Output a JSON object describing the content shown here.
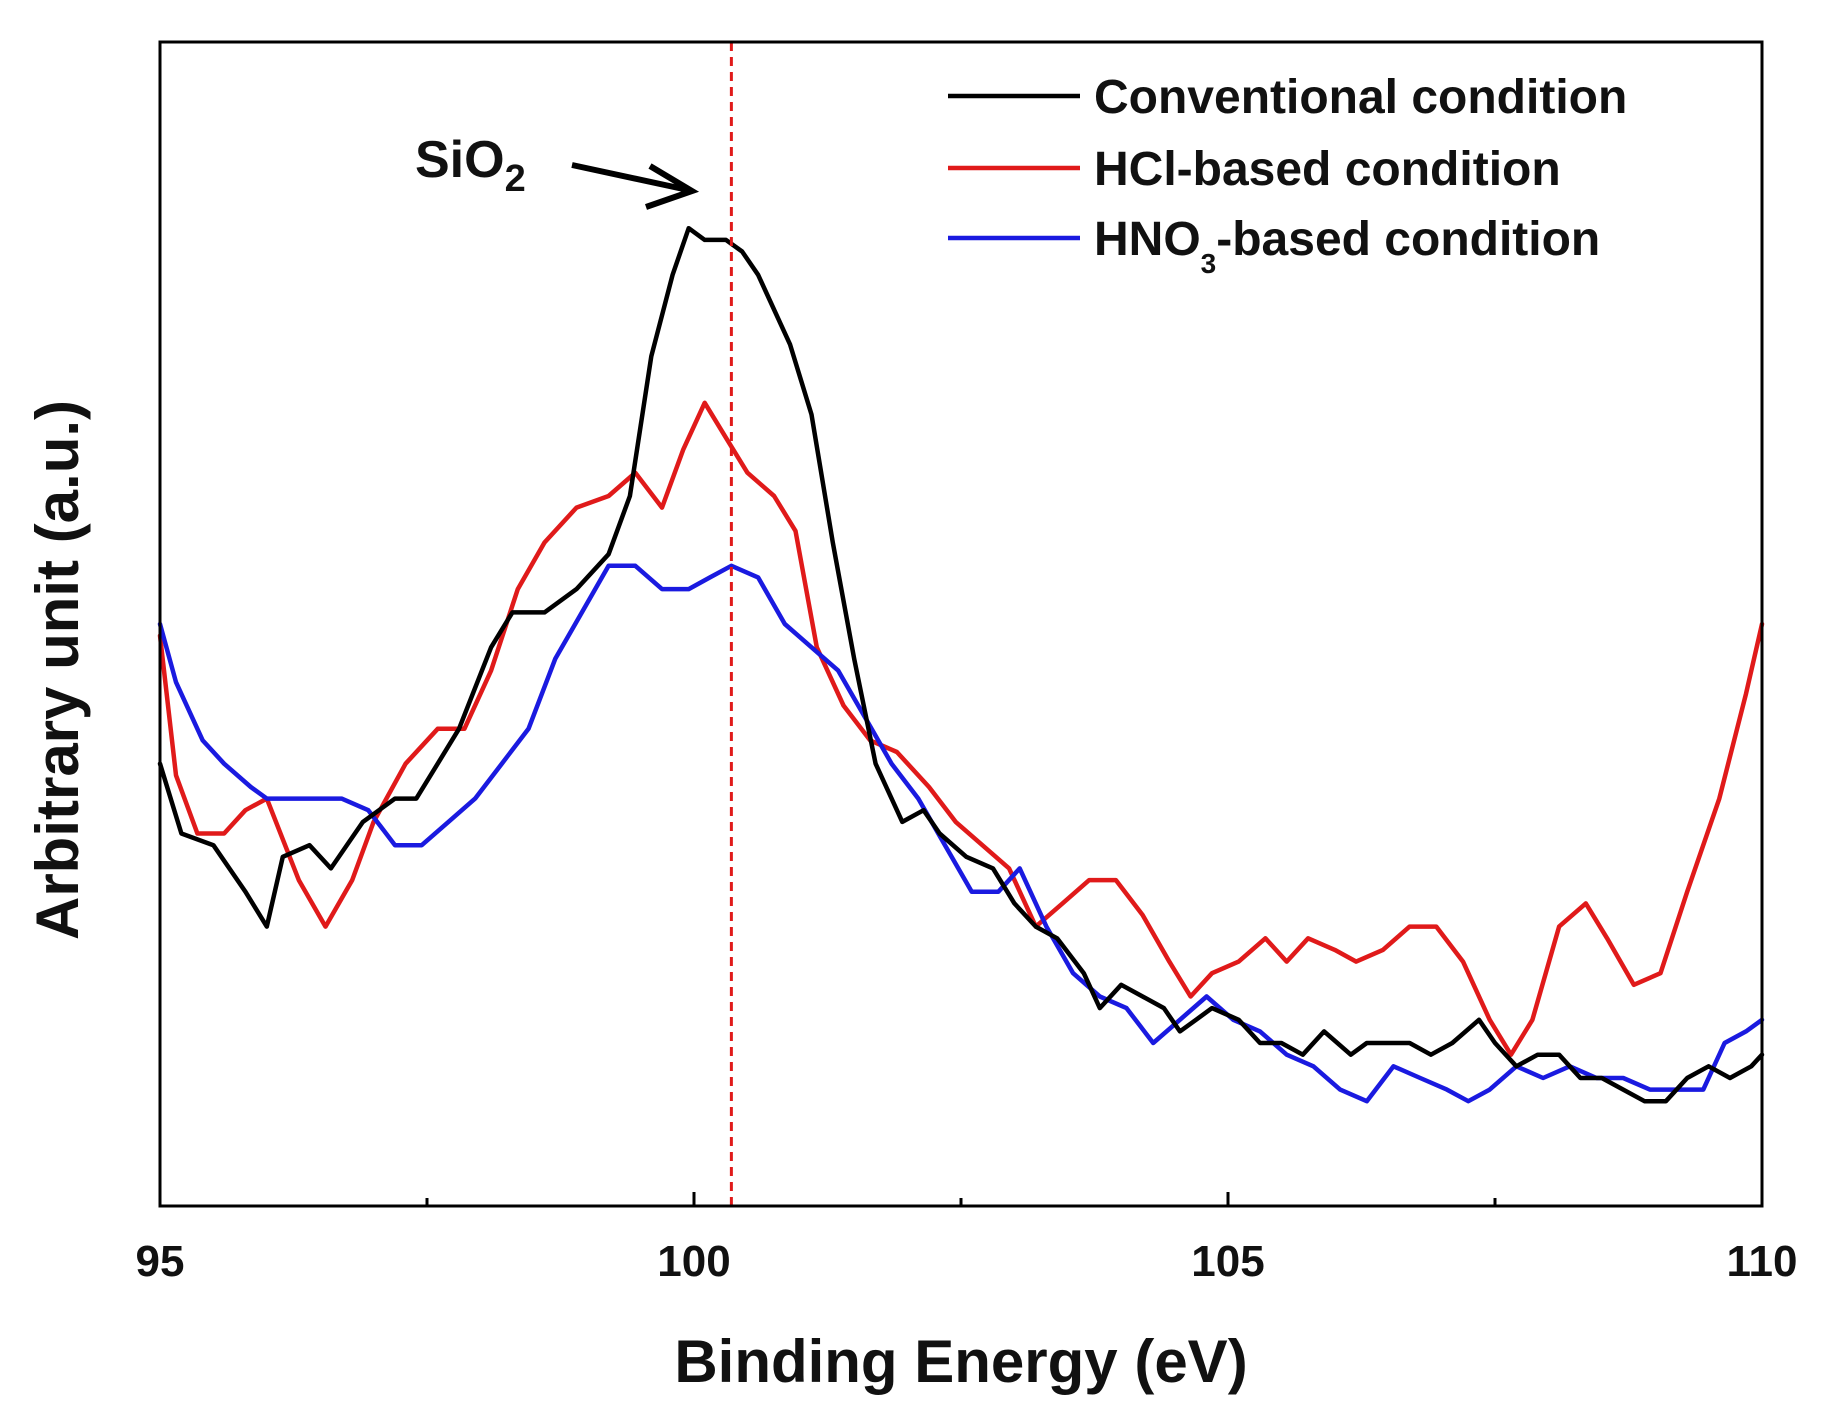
{
  "chart_data": {
    "type": "line",
    "xlabel": "Binding Energy (eV)",
    "ylabel": "Arbitrary unit (a.u.)",
    "xlim": [
      95,
      110
    ],
    "ylim": [
      0,
      100
    ],
    "x_ticks_major": [
      "95",
      "100",
      "105",
      "110"
    ],
    "x_ticks_minor": [
      97.5,
      102.5,
      107.5
    ],
    "y_ticks": "none",
    "grid": false,
    "legend_position": "top-right",
    "reference_line": {
      "x": 100.35,
      "color": "#e01a1a",
      "style": "dashed"
    },
    "annotation": {
      "text": "SiO",
      "subscript": "2",
      "arrow_points_to_x": 100.35
    },
    "series": [
      {
        "name": "Conventional condition",
        "legend_label": {
          "main": "Conventional condition",
          "sub": "",
          "rest": ""
        },
        "color": "#000000",
        "points": [
          [
            95.0,
            38
          ],
          [
            95.2,
            32
          ],
          [
            95.5,
            31
          ],
          [
            95.8,
            27
          ],
          [
            96.0,
            24
          ],
          [
            96.15,
            30
          ],
          [
            96.4,
            31
          ],
          [
            96.6,
            29
          ],
          [
            96.9,
            33
          ],
          [
            97.2,
            35
          ],
          [
            97.4,
            35
          ],
          [
            97.6,
            38
          ],
          [
            97.8,
            41
          ],
          [
            98.1,
            48
          ],
          [
            98.3,
            51
          ],
          [
            98.6,
            51
          ],
          [
            98.9,
            53
          ],
          [
            99.2,
            56
          ],
          [
            99.4,
            61
          ],
          [
            99.6,
            73
          ],
          [
            99.8,
            80
          ],
          [
            99.95,
            84
          ],
          [
            100.1,
            83
          ],
          [
            100.3,
            83
          ],
          [
            100.45,
            82
          ],
          [
            100.6,
            80
          ],
          [
            100.9,
            74
          ],
          [
            101.1,
            68
          ],
          [
            101.3,
            57
          ],
          [
            101.5,
            47
          ],
          [
            101.7,
            38
          ],
          [
            101.95,
            33
          ],
          [
            102.15,
            34
          ],
          [
            102.3,
            32
          ],
          [
            102.55,
            30
          ],
          [
            102.8,
            29
          ],
          [
            103.0,
            26
          ],
          [
            103.2,
            24
          ],
          [
            103.4,
            23
          ],
          [
            103.65,
            20
          ],
          [
            103.8,
            17
          ],
          [
            104.0,
            19
          ],
          [
            104.2,
            18
          ],
          [
            104.4,
            17
          ],
          [
            104.55,
            15
          ],
          [
            104.7,
            16
          ],
          [
            104.85,
            17
          ],
          [
            105.1,
            16
          ],
          [
            105.3,
            14
          ],
          [
            105.5,
            14
          ],
          [
            105.7,
            13
          ],
          [
            105.9,
            15
          ],
          [
            106.15,
            13
          ],
          [
            106.3,
            14
          ],
          [
            106.45,
            14
          ],
          [
            106.7,
            14
          ],
          [
            106.9,
            13
          ],
          [
            107.1,
            14
          ],
          [
            107.35,
            16
          ],
          [
            107.5,
            14
          ],
          [
            107.7,
            12
          ],
          [
            107.9,
            13
          ],
          [
            108.1,
            13
          ],
          [
            108.3,
            11
          ],
          [
            108.5,
            11
          ],
          [
            108.7,
            10
          ],
          [
            108.9,
            9
          ],
          [
            109.1,
            9
          ],
          [
            109.3,
            11
          ],
          [
            109.5,
            12
          ],
          [
            109.7,
            11
          ],
          [
            109.9,
            12
          ],
          [
            110.0,
            13
          ]
        ]
      },
      {
        "name": "HCl-based condition",
        "legend_label": {
          "main": "HCl-based condition",
          "sub": "",
          "rest": ""
        },
        "color": "#e01a1a",
        "points": [
          [
            95.0,
            49
          ],
          [
            95.15,
            37
          ],
          [
            95.35,
            32
          ],
          [
            95.6,
            32
          ],
          [
            95.8,
            34
          ],
          [
            96.0,
            35
          ],
          [
            96.3,
            28
          ],
          [
            96.55,
            24
          ],
          [
            96.8,
            28
          ],
          [
            97.0,
            33
          ],
          [
            97.3,
            38
          ],
          [
            97.6,
            41
          ],
          [
            97.85,
            41
          ],
          [
            98.1,
            46
          ],
          [
            98.35,
            53
          ],
          [
            98.6,
            57
          ],
          [
            98.9,
            60
          ],
          [
            99.2,
            61
          ],
          [
            99.45,
            63
          ],
          [
            99.7,
            60
          ],
          [
            99.9,
            65
          ],
          [
            100.1,
            69
          ],
          [
            100.3,
            66
          ],
          [
            100.5,
            63
          ],
          [
            100.75,
            61
          ],
          [
            100.95,
            58
          ],
          [
            101.15,
            48
          ],
          [
            101.4,
            43
          ],
          [
            101.65,
            40
          ],
          [
            101.9,
            39
          ],
          [
            102.2,
            36
          ],
          [
            102.45,
            33
          ],
          [
            102.7,
            31
          ],
          [
            102.95,
            29
          ],
          [
            103.2,
            24
          ],
          [
            103.45,
            26
          ],
          [
            103.7,
            28
          ],
          [
            103.95,
            28
          ],
          [
            104.2,
            25
          ],
          [
            104.45,
            21
          ],
          [
            104.65,
            18
          ],
          [
            104.85,
            20
          ],
          [
            105.1,
            21
          ],
          [
            105.35,
            23
          ],
          [
            105.55,
            21
          ],
          [
            105.75,
            23
          ],
          [
            106.0,
            22
          ],
          [
            106.2,
            21
          ],
          [
            106.45,
            22
          ],
          [
            106.7,
            24
          ],
          [
            106.95,
            24
          ],
          [
            107.2,
            21
          ],
          [
            107.45,
            16
          ],
          [
            107.65,
            13
          ],
          [
            107.85,
            16
          ],
          [
            108.1,
            24
          ],
          [
            108.35,
            26
          ],
          [
            108.55,
            23
          ],
          [
            108.8,
            19
          ],
          [
            109.05,
            20
          ],
          [
            109.3,
            27
          ],
          [
            109.6,
            35
          ],
          [
            109.85,
            44
          ],
          [
            110.0,
            50
          ]
        ]
      },
      {
        "name": "HNO3-based condition",
        "legend_label": {
          "main": "HNO",
          "sub": "3",
          "rest": "-based condition"
        },
        "color": "#1a1ae0",
        "points": [
          [
            95.0,
            50
          ],
          [
            95.15,
            45
          ],
          [
            95.4,
            40
          ],
          [
            95.6,
            38
          ],
          [
            95.85,
            36
          ],
          [
            96.0,
            35
          ],
          [
            96.2,
            35
          ],
          [
            96.45,
            35
          ],
          [
            96.7,
            35
          ],
          [
            96.95,
            34
          ],
          [
            97.2,
            31
          ],
          [
            97.45,
            31
          ],
          [
            97.7,
            33
          ],
          [
            97.95,
            35
          ],
          [
            98.2,
            38
          ],
          [
            98.45,
            41
          ],
          [
            98.7,
            47
          ],
          [
            98.95,
            51
          ],
          [
            99.2,
            55
          ],
          [
            99.45,
            55
          ],
          [
            99.7,
            53
          ],
          [
            99.95,
            53
          ],
          [
            100.15,
            54
          ],
          [
            100.35,
            55
          ],
          [
            100.6,
            54
          ],
          [
            100.85,
            50
          ],
          [
            101.1,
            48
          ],
          [
            101.35,
            46
          ],
          [
            101.6,
            42
          ],
          [
            101.85,
            38
          ],
          [
            102.1,
            35
          ],
          [
            102.35,
            31
          ],
          [
            102.6,
            27
          ],
          [
            102.85,
            27
          ],
          [
            103.05,
            29
          ],
          [
            103.3,
            24
          ],
          [
            103.55,
            20
          ],
          [
            103.8,
            18
          ],
          [
            104.05,
            17
          ],
          [
            104.3,
            14
          ],
          [
            104.55,
            16
          ],
          [
            104.8,
            18
          ],
          [
            105.05,
            16
          ],
          [
            105.3,
            15
          ],
          [
            105.55,
            13
          ],
          [
            105.8,
            12
          ],
          [
            106.05,
            10
          ],
          [
            106.3,
            9
          ],
          [
            106.55,
            12
          ],
          [
            106.8,
            11
          ],
          [
            107.05,
            10
          ],
          [
            107.25,
            9
          ],
          [
            107.45,
            10
          ],
          [
            107.7,
            12
          ],
          [
            107.95,
            11
          ],
          [
            108.2,
            12
          ],
          [
            108.45,
            11
          ],
          [
            108.7,
            11
          ],
          [
            108.95,
            10
          ],
          [
            109.2,
            10
          ],
          [
            109.45,
            10
          ],
          [
            109.65,
            14
          ],
          [
            109.85,
            15
          ],
          [
            110.0,
            16
          ]
        ]
      }
    ]
  }
}
